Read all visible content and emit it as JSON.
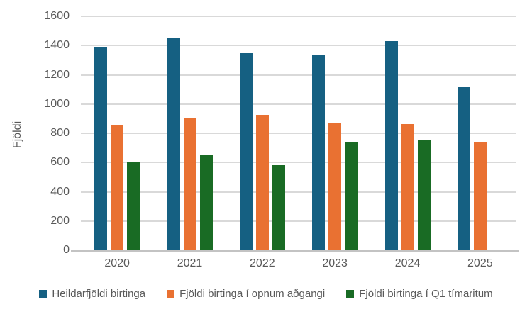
{
  "chart_data": {
    "type": "bar",
    "title": "",
    "xlabel": "",
    "ylabel": "Fjöldi",
    "ylim": [
      0,
      1600
    ],
    "ytick_step": 200,
    "yticklabels": [
      "0",
      "200",
      "400",
      "600",
      "800",
      "1000",
      "1200",
      "1400",
      "1600"
    ],
    "grid": true,
    "legend_position": "bottom",
    "categories": [
      "2020",
      "2021",
      "2022",
      "2023",
      "2024",
      "2025"
    ],
    "series": [
      {
        "name": "Heildarfjöldi birtinga",
        "color": "#156082",
        "values": [
          1385,
          1455,
          1350,
          1340,
          1430,
          1115
        ]
      },
      {
        "name": "Fjöldi birtinga í opnum aðgangi",
        "color": "#E97132",
        "values": [
          855,
          905,
          925,
          875,
          865,
          740
        ]
      },
      {
        "name": "Fjöldi birtinga í Q1 tímaritum",
        "color": "#196B24",
        "values": [
          600,
          650,
          580,
          735,
          755,
          null
        ]
      }
    ]
  },
  "colors": {
    "gridline": "#d9d9d9",
    "axis_line": "#c3c3c3",
    "text": "#595959",
    "background": "#ffffff"
  }
}
